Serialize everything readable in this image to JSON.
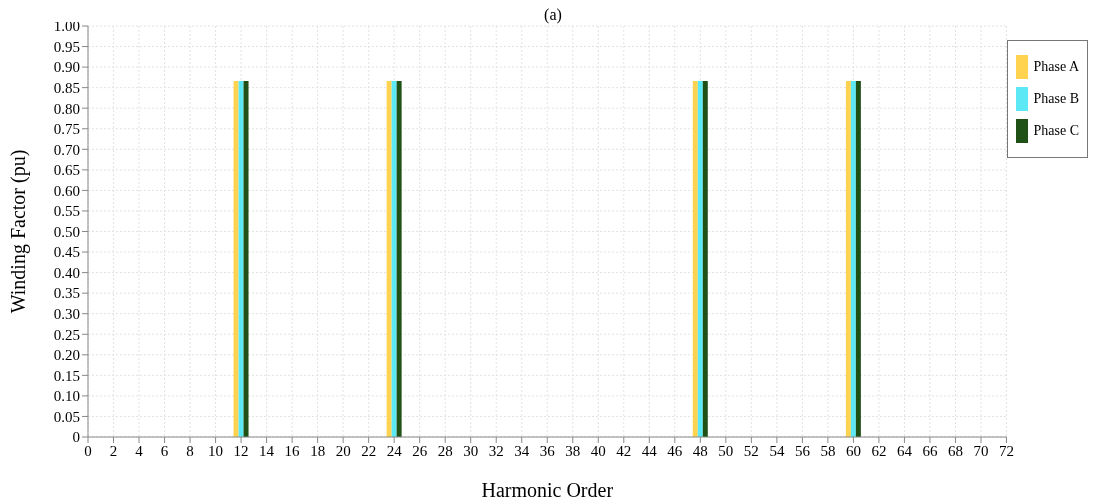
{
  "chart_data": {
    "type": "bar",
    "title": "(a)",
    "xlabel": "Harmonic Order",
    "ylabel": "Winding Factor (pu)",
    "x": [
      12,
      24,
      48,
      60
    ],
    "series": [
      {
        "name": "Phase A",
        "color": "#ffd34f",
        "values": [
          0.866,
          0.866,
          0.866,
          0.866
        ]
      },
      {
        "name": "Phase B",
        "color": "#5ce8f5",
        "values": [
          0.866,
          0.866,
          0.866,
          0.866
        ]
      },
      {
        "name": "Phase C",
        "color": "#1f5116",
        "values": [
          0.866,
          0.866,
          0.866,
          0.866
        ]
      }
    ],
    "xlim": [
      0,
      72
    ],
    "xticks": [
      0,
      2,
      4,
      6,
      8,
      10,
      12,
      14,
      16,
      18,
      20,
      22,
      24,
      26,
      28,
      30,
      32,
      34,
      36,
      38,
      40,
      42,
      44,
      46,
      48,
      50,
      52,
      54,
      56,
      58,
      60,
      62,
      64,
      66,
      68,
      70,
      72
    ],
    "ylim": [
      0,
      1
    ],
    "yticks": [
      {
        "value": 0,
        "label": "0"
      },
      {
        "value": 0.05,
        "label": "0.05"
      },
      {
        "value": 0.1,
        "label": "0.10"
      },
      {
        "value": 0.15,
        "label": "0.15"
      },
      {
        "value": 0.2,
        "label": "0.20"
      },
      {
        "value": 0.25,
        "label": "0.25"
      },
      {
        "value": 0.3,
        "label": "0.30"
      },
      {
        "value": 0.35,
        "label": "0.35"
      },
      {
        "value": 0.4,
        "label": "0.40"
      },
      {
        "value": 0.45,
        "label": "0.45"
      },
      {
        "value": 0.5,
        "label": "0.50"
      },
      {
        "value": 0.55,
        "label": "0.55"
      },
      {
        "value": 0.6,
        "label": "0.60"
      },
      {
        "value": 0.65,
        "label": "0.65"
      },
      {
        "value": 0.7,
        "label": "0.70"
      },
      {
        "value": 0.75,
        "label": "0.75"
      },
      {
        "value": 0.8,
        "label": "0.80"
      },
      {
        "value": 0.85,
        "label": "0.85"
      },
      {
        "value": 0.9,
        "label": "0.90"
      },
      {
        "value": 0.95,
        "label": "0.95"
      },
      {
        "value": 1,
        "label": "1.00"
      }
    ],
    "grid": true,
    "legend": "top right"
  }
}
